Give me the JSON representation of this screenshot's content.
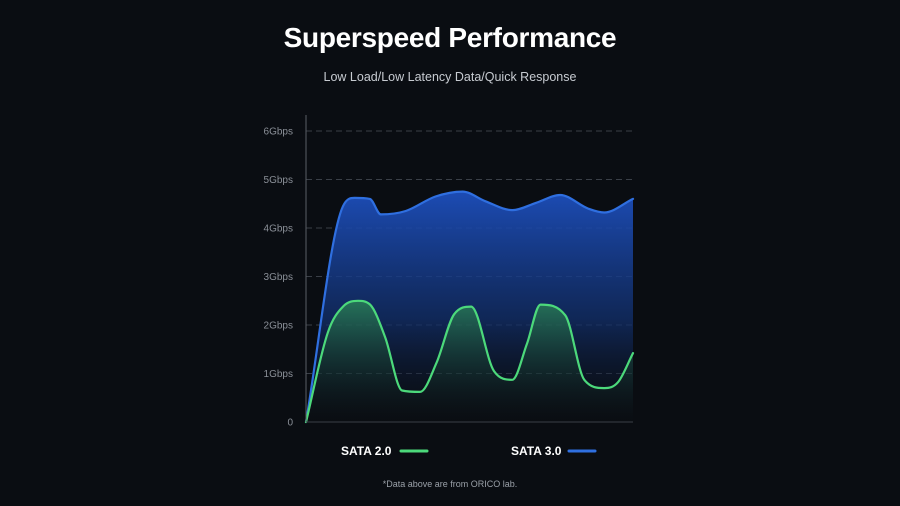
{
  "page": {
    "title": "Superspeed Performance",
    "subtitle": "Low Load/Low Latency Data/Quick Response",
    "footnote": "*Data above are from ORICO lab."
  },
  "chart_data": {
    "type": "area",
    "title": "Superspeed Performance",
    "subtitle": "Low Load/Low Latency Data/Quick Response",
    "xlabel": "",
    "ylabel": "",
    "ylim": [
      0,
      6
    ],
    "yticks": [
      0,
      1,
      2,
      3,
      4,
      5,
      6
    ],
    "ytick_labels": [
      "0",
      "1Gbps",
      "2Gbps",
      "3Gbps",
      "4Gbps",
      "5Gbps",
      "6Gbps"
    ],
    "xlim": [
      0,
      100
    ],
    "grid": "horizontal-dashed",
    "legend": "bottom",
    "series": [
      {
        "name": "SATA 3.0",
        "color": "#2f6fe0",
        "x": [
          0,
          11.3,
          14.9,
          19.5,
          22.9,
          30.5,
          39.6,
          47.9,
          54.9,
          63.1,
          70.4,
          77.7,
          86.3,
          91.2,
          100
        ],
        "values": [
          0,
          4.45,
          4.62,
          4.6,
          4.28,
          4.35,
          4.65,
          4.75,
          4.55,
          4.37,
          4.52,
          4.68,
          4.4,
          4.32,
          4.6
        ]
      },
      {
        "name": "SATA 2.0",
        "color": "#4cd97b",
        "x": [
          0,
          6.7,
          11.3,
          15.9,
          19.6,
          24.2,
          29.4,
          34.9,
          39.9,
          45.3,
          50.5,
          57.5,
          63.1,
          67.6,
          71.7,
          79.3,
          85.1,
          91.2,
          95.4,
          100
        ],
        "values": [
          0,
          1.85,
          2.38,
          2.5,
          2.42,
          1.75,
          0.65,
          0.62,
          1.22,
          2.22,
          2.38,
          1.05,
          0.87,
          1.62,
          2.42,
          2.2,
          0.87,
          0.7,
          0.82,
          1.42
        ]
      }
    ]
  }
}
